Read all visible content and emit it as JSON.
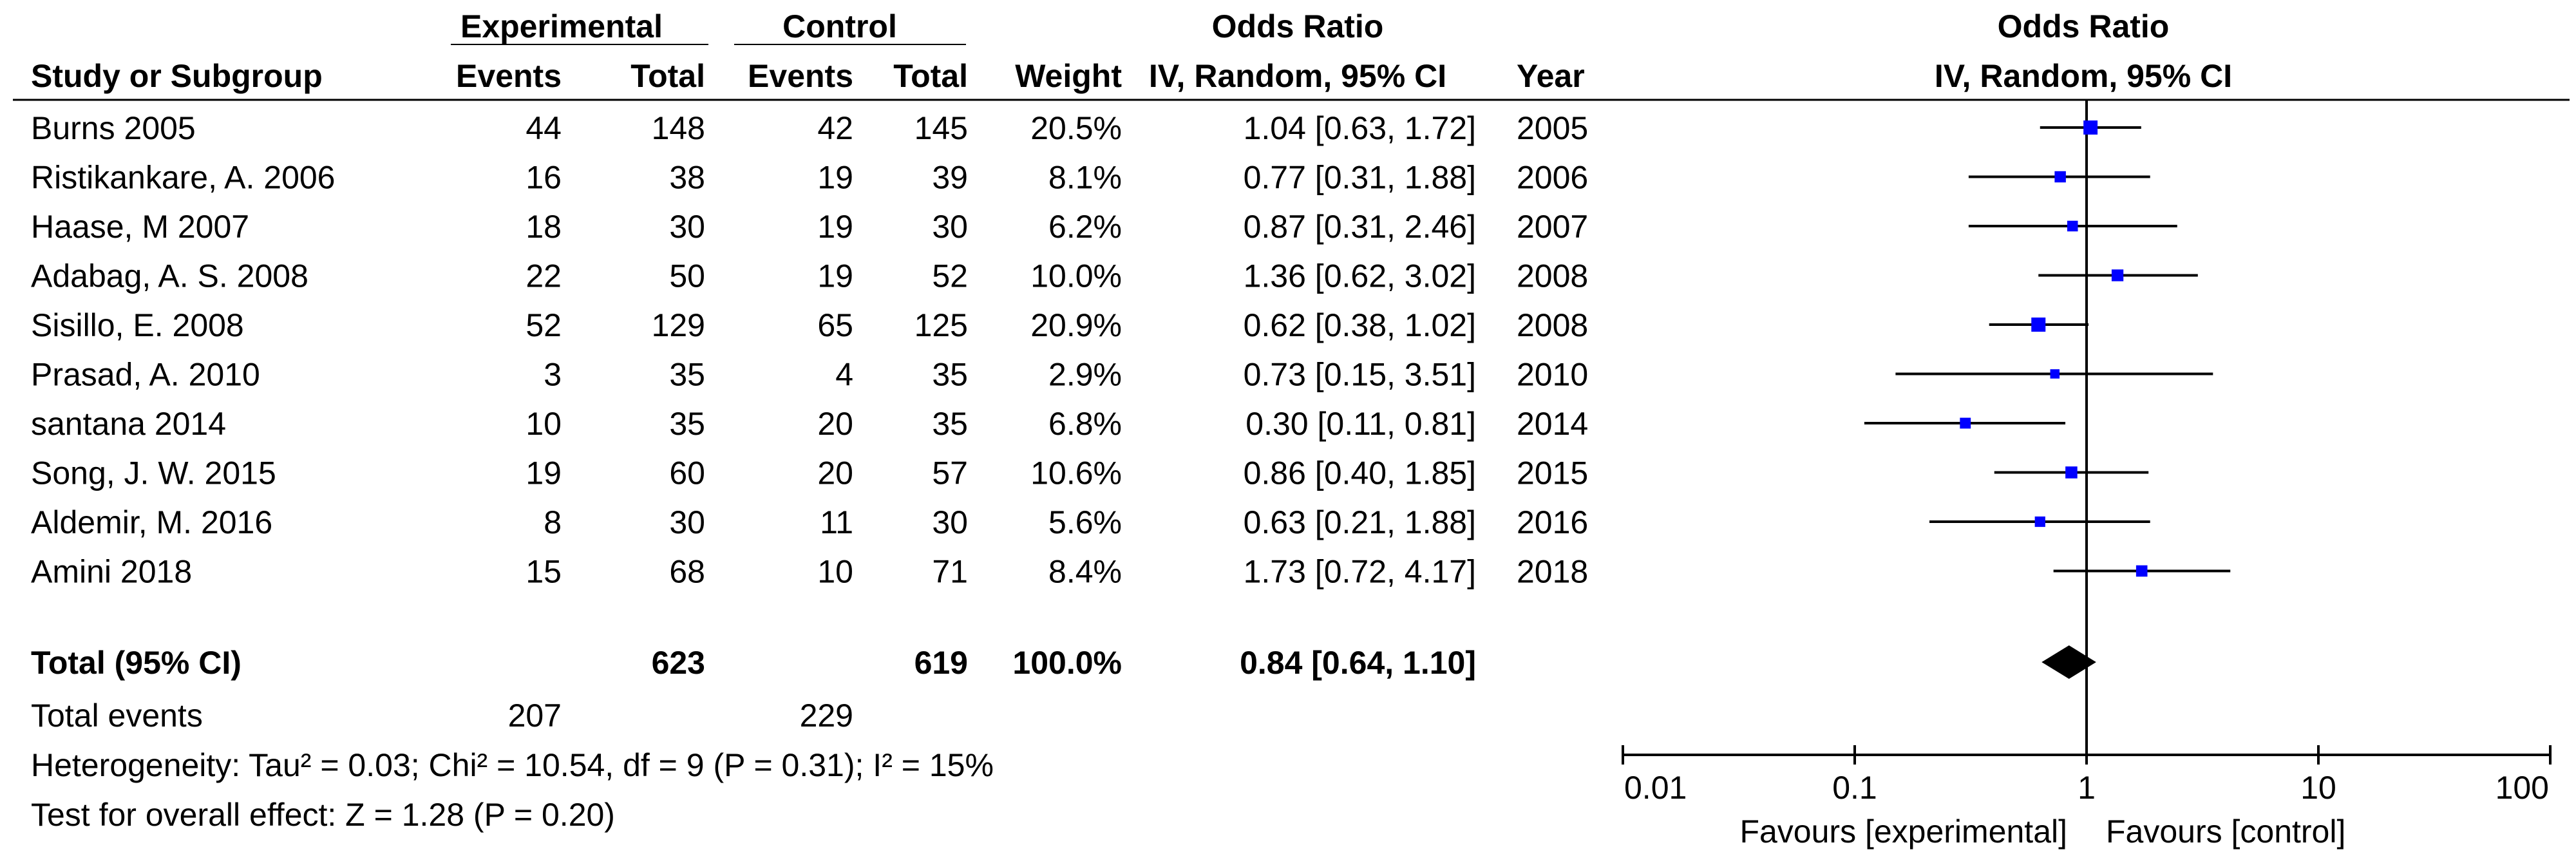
{
  "chart_data": {
    "type": "forest",
    "header": {
      "group1": "Experimental",
      "group2": "Control",
      "effect_group": "Odds Ratio",
      "study_col": "Study or Subgroup",
      "events": "Events",
      "total": "Total",
      "weight": "Weight",
      "method": "IV, Random, 95% CI",
      "year": "Year",
      "plot_title": "Odds Ratio",
      "plot_method": "IV, Random, 95% CI"
    },
    "studies": [
      {
        "name": "Burns 2005",
        "exp_events": "44",
        "exp_total": "148",
        "ctl_events": "42",
        "ctl_total": "145",
        "weight": "20.5%",
        "ci_text": "1.04 [0.63, 1.72]",
        "year": "2005",
        "or": 1.04,
        "lo": 0.63,
        "hi": 1.72,
        "w": 20.5
      },
      {
        "name": "Ristikankare, A. 2006",
        "exp_events": "16",
        "exp_total": "38",
        "ctl_events": "19",
        "ctl_total": "39",
        "weight": "8.1%",
        "ci_text": "0.77 [0.31, 1.88]",
        "year": "2006",
        "or": 0.77,
        "lo": 0.31,
        "hi": 1.88,
        "w": 8.1
      },
      {
        "name": "Haase, M 2007",
        "exp_events": "18",
        "exp_total": "30",
        "ctl_events": "19",
        "ctl_total": "30",
        "weight": "6.2%",
        "ci_text": "0.87 [0.31, 2.46]",
        "year": "2007",
        "or": 0.87,
        "lo": 0.31,
        "hi": 2.46,
        "w": 6.2
      },
      {
        "name": "Adabag, A. S. 2008",
        "exp_events": "22",
        "exp_total": "50",
        "ctl_events": "19",
        "ctl_total": "52",
        "weight": "10.0%",
        "ci_text": "1.36 [0.62, 3.02]",
        "year": "2008",
        "or": 1.36,
        "lo": 0.62,
        "hi": 3.02,
        "w": 10.0
      },
      {
        "name": "Sisillo, E. 2008",
        "exp_events": "52",
        "exp_total": "129",
        "ctl_events": "65",
        "ctl_total": "125",
        "weight": "20.9%",
        "ci_text": "0.62 [0.38, 1.02]",
        "year": "2008",
        "or": 0.62,
        "lo": 0.38,
        "hi": 1.02,
        "w": 20.9
      },
      {
        "name": "Prasad, A. 2010",
        "exp_events": "3",
        "exp_total": "35",
        "ctl_events": "4",
        "ctl_total": "35",
        "weight": "2.9%",
        "ci_text": "0.73 [0.15, 3.51]",
        "year": "2010",
        "or": 0.73,
        "lo": 0.15,
        "hi": 3.51,
        "w": 2.9
      },
      {
        "name": "santana 2014",
        "exp_events": "10",
        "exp_total": "35",
        "ctl_events": "20",
        "ctl_total": "35",
        "weight": "6.8%",
        "ci_text": "0.30 [0.11, 0.81]",
        "year": "2014",
        "or": 0.3,
        "lo": 0.11,
        "hi": 0.81,
        "w": 6.8
      },
      {
        "name": "Song, J. W. 2015",
        "exp_events": "19",
        "exp_total": "60",
        "ctl_events": "20",
        "ctl_total": "57",
        "weight": "10.6%",
        "ci_text": "0.86 [0.40, 1.85]",
        "year": "2015",
        "or": 0.86,
        "lo": 0.4,
        "hi": 1.85,
        "w": 10.6
      },
      {
        "name": "Aldemir, M. 2016",
        "exp_events": "8",
        "exp_total": "30",
        "ctl_events": "11",
        "ctl_total": "30",
        "weight": "5.6%",
        "ci_text": "0.63 [0.21, 1.88]",
        "year": "2016",
        "or": 0.63,
        "lo": 0.21,
        "hi": 1.88,
        "w": 5.6
      },
      {
        "name": "Amini 2018",
        "exp_events": "15",
        "exp_total": "68",
        "ctl_events": "10",
        "ctl_total": "71",
        "weight": "8.4%",
        "ci_text": "1.73 [0.72, 4.17]",
        "year": "2018",
        "or": 1.73,
        "lo": 0.72,
        "hi": 4.17,
        "w": 8.4
      }
    ],
    "total": {
      "label": "Total (95% CI)",
      "exp_total": "623",
      "ctl_total": "619",
      "weight": "100.0%",
      "ci_text": "0.84 [0.64, 1.10]",
      "or": 0.84,
      "lo": 0.64,
      "hi": 1.1
    },
    "total_events": {
      "label": "Total events",
      "exp": "207",
      "ctl": "229"
    },
    "heterogeneity": "Heterogeneity: Tau² = 0.03; Chi² = 10.54, df = 9 (P = 0.31); I² = 15%",
    "overall_effect": "Test for overall effect: Z = 1.28 (P = 0.20)",
    "axis": {
      "scale": "log",
      "range": [
        0.01,
        100
      ],
      "ticks": [
        0.01,
        0.1,
        1,
        10,
        100
      ],
      "tick_labels": [
        "0.01",
        "0.1",
        "1",
        "10",
        "100"
      ],
      "favours_left": "Favours [experimental]",
      "favours_right": "Favours [control]"
    },
    "colors": {
      "marker": "#0000ff",
      "diamond": "#000000",
      "line": "#000000"
    }
  }
}
